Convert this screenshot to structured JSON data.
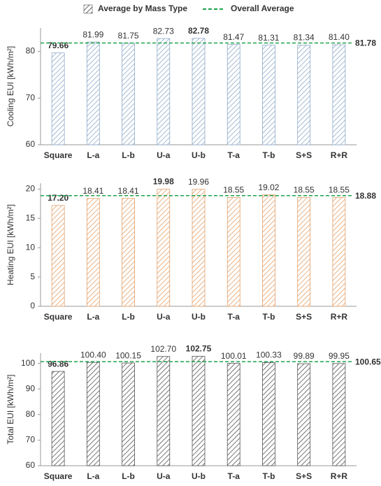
{
  "chart_data": [
    {
      "type": "bar",
      "y_label": "Cooling EUI [kWh/m²]",
      "categories": [
        "Square",
        "L-a",
        "L-b",
        "U-a",
        "U-b",
        "T-a",
        "T-b",
        "S+S",
        "R+R"
      ],
      "series": [
        {
          "name": "Average by Mass Type",
          "color": "#8ea9c8",
          "values": [
            79.66,
            81.99,
            81.75,
            82.73,
            82.78,
            81.47,
            81.31,
            81.34,
            81.4
          ],
          "value_labels": [
            "79.66",
            "81.99",
            "81.75",
            "82.73",
            "82.78",
            "81.47",
            "81.31",
            "81.34",
            "81.40"
          ],
          "value_label_colors": [
            "#1f3a9e",
            "#333333",
            "#333333",
            "#333333",
            "#e02020",
            "#333333",
            "#333333",
            "#333333",
            "#333333"
          ]
        }
      ],
      "reference_line": {
        "name": "Overall Average",
        "value": 81.78,
        "color": "#1ea34a"
      },
      "ylim": [
        60,
        85
      ],
      "yticks": [
        60,
        70,
        80
      ]
    },
    {
      "type": "bar",
      "y_label": "Heating EUI [kWh/m²]",
      "categories": [
        "Square",
        "L-a",
        "L-b",
        "U-a",
        "U-b",
        "T-a",
        "T-b",
        "S+S",
        "R+R"
      ],
      "series": [
        {
          "name": "Average by Mass Type",
          "color": "#e3a06a",
          "values": [
            17.2,
            18.41,
            18.41,
            19.98,
            19.96,
            18.55,
            19.02,
            18.55,
            18.55
          ],
          "value_labels": [
            "17.20",
            "18.41",
            "18.41",
            "19.98",
            "19.96",
            "18.55",
            "19.02",
            "18.55",
            "18.55"
          ],
          "value_label_colors": [
            "#1f3a9e",
            "#333333",
            "#333333",
            "#e02020",
            "#333333",
            "#333333",
            "#333333",
            "#333333",
            "#333333"
          ]
        }
      ],
      "reference_line": {
        "name": "Overall Average",
        "value": 18.88,
        "color": "#1ea34a"
      },
      "ylim": [
        0,
        21
      ],
      "yticks": [
        0,
        5,
        10,
        15,
        20
      ]
    },
    {
      "type": "bar",
      "y_label": "Total EUI [kWh/m²]",
      "categories": [
        "Square",
        "L-a",
        "L-b",
        "U-a",
        "U-b",
        "T-a",
        "T-b",
        "S+S",
        "R+R"
      ],
      "series": [
        {
          "name": "Average by Mass Type",
          "color": "#555555",
          "values": [
            96.86,
            100.4,
            100.15,
            102.7,
            102.75,
            100.01,
            100.33,
            99.89,
            99.95
          ],
          "value_labels": [
            "96.86",
            "100.40",
            "100.15",
            "102.70",
            "102.75",
            "100.01",
            "100.33",
            "99.89",
            "99.95"
          ],
          "value_label_colors": [
            "#1f3a9e",
            "#333333",
            "#333333",
            "#333333",
            "#e02020",
            "#333333",
            "#333333",
            "#333333",
            "#333333"
          ]
        }
      ],
      "reference_line": {
        "name": "Overall Average",
        "value": 100.65,
        "color": "#1ea34a"
      },
      "ylim": [
        60,
        104
      ],
      "yticks": [
        60,
        70,
        80,
        90,
        100
      ]
    }
  ]
}
